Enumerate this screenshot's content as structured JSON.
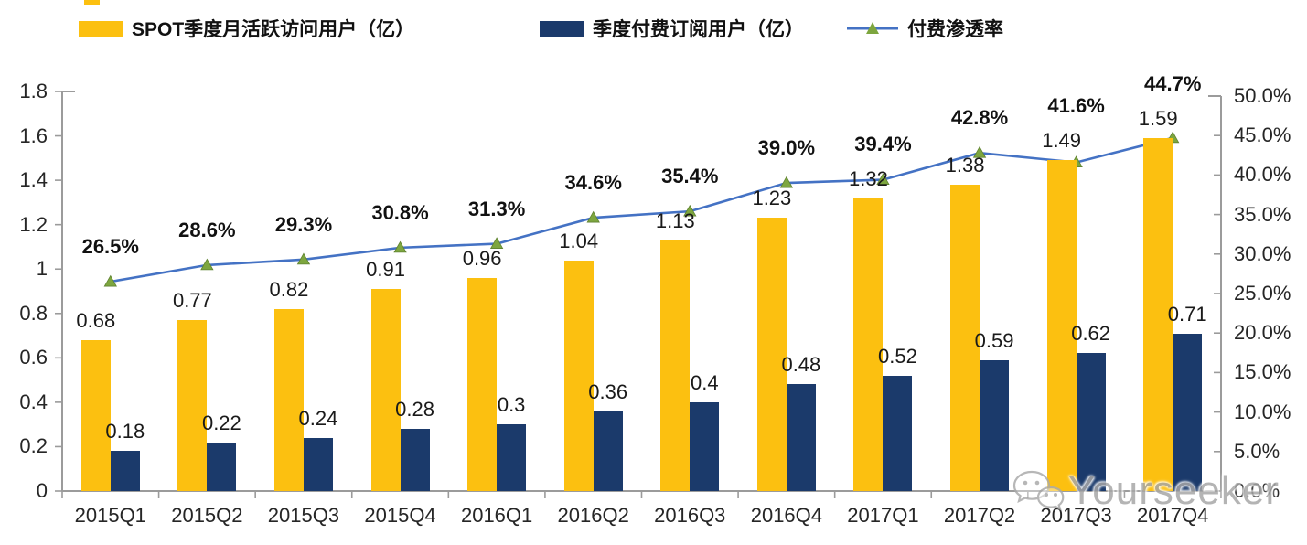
{
  "chart_data": {
    "type": "combo",
    "categories": [
      "2015Q1",
      "2015Q2",
      "2015Q3",
      "2015Q4",
      "2016Q1",
      "2016Q2",
      "2016Q3",
      "2016Q4",
      "2017Q1",
      "2017Q2",
      "2017Q3",
      "2017Q4"
    ],
    "series": [
      {
        "name": "SPOT季度月活跃访问用户（亿）",
        "type": "bar",
        "axis": "left",
        "values": [
          0.68,
          0.77,
          0.82,
          0.91,
          0.96,
          1.04,
          1.13,
          1.23,
          1.32,
          1.38,
          1.49,
          1.59
        ],
        "labels": [
          "0.68",
          "0.77",
          "0.82",
          "0.91",
          "0.96",
          "1.04",
          "1.13",
          "1.23",
          "1.32",
          "1.38",
          "1.49",
          "1.59"
        ]
      },
      {
        "name": "季度付费订阅用户（亿）",
        "type": "bar",
        "axis": "left",
        "values": [
          0.18,
          0.22,
          0.24,
          0.28,
          0.3,
          0.36,
          0.4,
          0.48,
          0.52,
          0.59,
          0.62,
          0.71
        ],
        "labels": [
          "0.18",
          "0.22",
          "0.24",
          "0.28",
          "0.3",
          "0.36",
          "0.4",
          "0.48",
          "0.52",
          "0.59",
          "0.62",
          "0.71"
        ]
      },
      {
        "name": "付费渗透率",
        "type": "line",
        "axis": "right",
        "marker": "triangle",
        "values": [
          26.5,
          28.6,
          29.3,
          30.8,
          31.3,
          34.6,
          35.4,
          39.0,
          39.4,
          42.8,
          41.6,
          44.7
        ],
        "labels": [
          "26.5%",
          "28.6%",
          "29.3%",
          "30.8%",
          "31.3%",
          "34.6%",
          "35.4%",
          "39.0%",
          "39.4%",
          "42.8%",
          "41.6%",
          "44.7%"
        ]
      }
    ],
    "left_axis": {
      "min": 0,
      "max": 1.8,
      "ticks": [
        "0",
        "0.2",
        "0.4",
        "0.6",
        "0.8",
        "1",
        "1.2",
        "1.4",
        "1.6",
        "1.8"
      ]
    },
    "right_axis": {
      "min": 0,
      "max": 50,
      "ticks": [
        "0.0%",
        "5.0%",
        "10.0%",
        "15.0%",
        "20.0%",
        "25.0%",
        "30.0%",
        "35.0%",
        "40.0%",
        "45.0%",
        "50.0%"
      ]
    },
    "grid": false,
    "legend_position": "top"
  },
  "colors": {
    "bar_mau": "#FCC010",
    "bar_subs": "#1B3A6B",
    "line": "#4472C4",
    "marker": "#7DA63F",
    "marker_edge": "#5F8230",
    "axis": "#9B9B9B",
    "text": "#1A1A1A"
  },
  "watermark": {
    "text": "Yourseeker",
    "icon": "wechat-icon"
  }
}
